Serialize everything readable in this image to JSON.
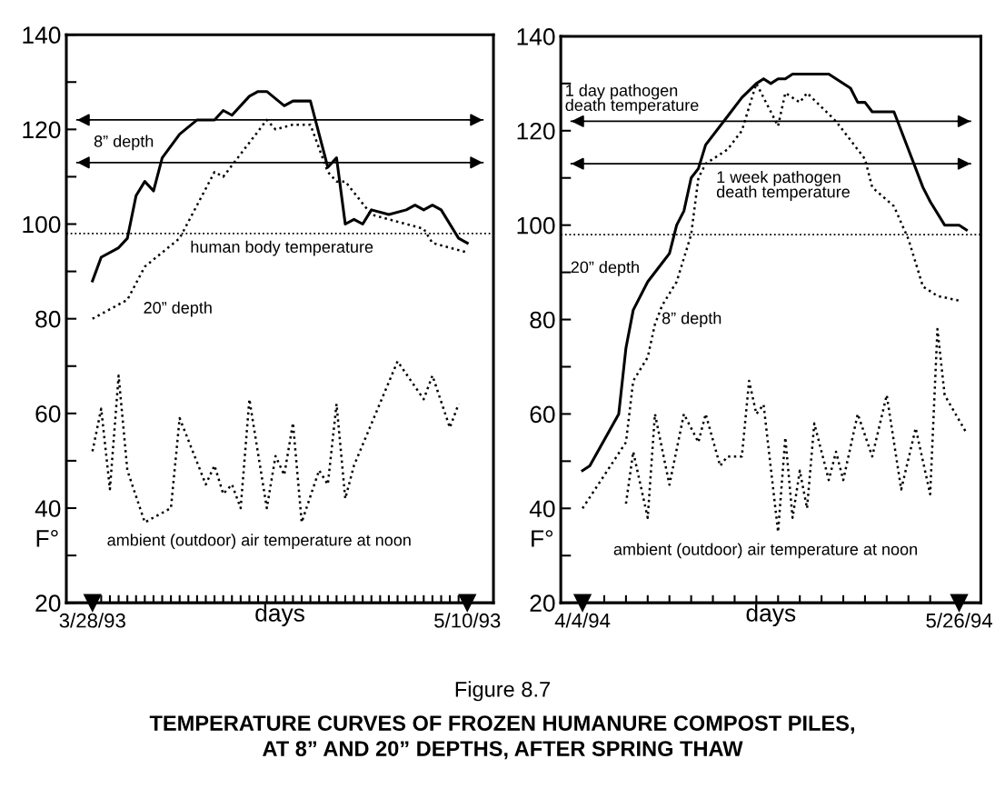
{
  "chart_data": [
    {
      "type": "line",
      "title": "Figure 8.7",
      "subtitle": "TEMPERATURE CURVES OF FROZEN HUMANURE COMPOST PILES,\nAT 8” AND 20” DEPTHS, AFTER SPRING THAW",
      "xlabel": "days",
      "ylabel": "F°",
      "xlim": [
        "1993-03-25",
        "1993-05-13"
      ],
      "ylim": [
        20,
        140
      ],
      "xticks": [
        {
          "value": "1993-03-28",
          "label": "3/28/93"
        },
        {
          "value": "1993-03-29",
          "label": null
        },
        {
          "value": "1993-03-30",
          "label": null
        },
        {
          "value": "1993-03-31",
          "label": null
        },
        {
          "value": "1993-04-01",
          "label": null
        },
        {
          "value": "1993-04-02",
          "label": null
        },
        {
          "value": "1993-04-03",
          "label": null
        },
        {
          "value": "1993-04-04",
          "label": null
        },
        {
          "value": "1993-04-05",
          "label": null
        },
        {
          "value": "1993-04-06",
          "label": null
        },
        {
          "value": "1993-04-07",
          "label": null
        },
        {
          "value": "1993-04-08",
          "label": null
        },
        {
          "value": "1993-04-09",
          "label": null
        },
        {
          "value": "1993-04-10",
          "label": null
        },
        {
          "value": "1993-04-11",
          "label": null
        },
        {
          "value": "1993-04-12",
          "label": null
        },
        {
          "value": "1993-04-13",
          "label": null
        },
        {
          "value": "1993-04-14",
          "label": null
        },
        {
          "value": "1993-04-15",
          "label": null
        },
        {
          "value": "1993-04-16",
          "label": null
        },
        {
          "value": "1993-04-17",
          "label": null
        },
        {
          "value": "1993-04-18",
          "label": null
        },
        {
          "value": "1993-04-19",
          "label": null
        },
        {
          "value": "1993-04-20",
          "label": null
        },
        {
          "value": "1993-04-21",
          "label": null
        },
        {
          "value": "1993-04-22",
          "label": null
        },
        {
          "value": "1993-04-23",
          "label": null
        },
        {
          "value": "1993-04-24",
          "label": null
        },
        {
          "value": "1993-04-25",
          "label": null
        },
        {
          "value": "1993-04-26",
          "label": null
        },
        {
          "value": "1993-04-27",
          "label": null
        },
        {
          "value": "1993-04-28",
          "label": null
        },
        {
          "value": "1993-04-29",
          "label": null
        },
        {
          "value": "1993-04-30",
          "label": null
        },
        {
          "value": "1993-05-01",
          "label": null
        },
        {
          "value": "1993-05-02",
          "label": null
        },
        {
          "value": "1993-05-03",
          "label": null
        },
        {
          "value": "1993-05-04",
          "label": null
        },
        {
          "value": "1993-05-05",
          "label": null
        },
        {
          "value": "1993-05-06",
          "label": null
        },
        {
          "value": "1993-05-07",
          "label": null
        },
        {
          "value": "1993-05-08",
          "label": null
        },
        {
          "value": "1993-05-09",
          "label": null
        },
        {
          "value": "1993-05-10",
          "label": "5/10/93"
        }
      ],
      "yticks": [
        20,
        {
          "value": 30,
          "label": null
        },
        40,
        {
          "value": 50,
          "label": null
        },
        60,
        {
          "value": 70,
          "label": null
        },
        80,
        {
          "value": 90,
          "label": null
        },
        100,
        {
          "value": 110,
          "label": null
        },
        120,
        {
          "value": 130,
          "label": null
        },
        140
      ],
      "grid": false,
      "marker": "none",
      "series": [
        {
          "color": "#000000",
          "line_style": "solid",
          "x": [
            "1993-03-28",
            "1993-03-29",
            "1993-03-31",
            "1993-04-01",
            "1993-04-02",
            "1993-04-03",
            "1993-04-04",
            "1993-04-05",
            "1993-04-07",
            "1993-04-09",
            "1993-04-11",
            "1993-04-12",
            "1993-04-13",
            "1993-04-15",
            "1993-04-16",
            "1993-04-17",
            "1993-04-19",
            "1993-04-20",
            "1993-04-22",
            "1993-04-24",
            "1993-04-25",
            "1993-04-26",
            "1993-04-27",
            "1993-04-28",
            "1993-04-29",
            "1993-05-01",
            "1993-05-03",
            "1993-05-04",
            "1993-05-05",
            "1993-05-06",
            "1993-05-07",
            "1993-05-09",
            "1993-05-10"
          ],
          "values": [
            88,
            93,
            95,
            97,
            106,
            109,
            107,
            114,
            119,
            122,
            122,
            124,
            123,
            127,
            128,
            128,
            125,
            126,
            126,
            112,
            114,
            100,
            101,
            100,
            103,
            102,
            103,
            104,
            103,
            104,
            103,
            97,
            96
          ]
        },
        {
          "color": "#000000",
          "line_style": "dotted",
          "x": [
            "1993-03-28",
            "1993-04-01",
            "1993-04-03",
            "1993-04-07",
            "1993-04-11",
            "1993-04-12",
            "1993-04-17",
            "1993-04-18",
            "1993-04-20",
            "1993-04-22",
            "1993-04-24",
            "1993-04-25",
            "1993-04-26",
            "1993-04-29",
            "1993-05-01",
            "1993-05-05",
            "1993-05-06",
            "1993-05-08",
            "1993-05-10"
          ],
          "values": [
            80,
            84,
            91,
            97,
            111,
            110,
            122,
            120,
            121,
            121,
            111,
            109,
            109,
            102,
            101,
            99,
            96,
            95,
            94
          ]
        },
        {
          "color": "#000000",
          "line_style": "dotted",
          "x": [
            "1993-03-28",
            "1993-03-29",
            "1993-03-30",
            "1993-03-31",
            "1993-04-01",
            "1993-04-03",
            "1993-04-06",
            "1993-04-07",
            "1993-04-10",
            "1993-04-11",
            "1993-04-12",
            "1993-04-13",
            "1993-04-14",
            "1993-04-15",
            "1993-04-17",
            "1993-04-18",
            "1993-04-19",
            "1993-04-20",
            "1993-04-21",
            "1993-04-23",
            "1993-04-24",
            "1993-04-25",
            "1993-04-26",
            "1993-04-27",
            "1993-05-02",
            "1993-05-05",
            "1993-05-06",
            "1993-05-08",
            "1993-05-09"
          ],
          "values": [
            52,
            61,
            44,
            68,
            48,
            37,
            40,
            59,
            45,
            49,
            43,
            45,
            40,
            63,
            40,
            51,
            47,
            58,
            37,
            48,
            45,
            62,
            42,
            49,
            71,
            63,
            68,
            57,
            62
          ]
        }
      ],
      "ref_lines": [
        {
          "axis": "y",
          "value": 122,
          "label": null,
          "line_style": "solid"
        },
        {
          "axis": "y",
          "value": 113,
          "label": null,
          "line_style": "solid"
        },
        {
          "axis": "y",
          "value": 98,
          "label": "human body temperature",
          "line_style": "dotted"
        }
      ],
      "annotations": [
        "8” depth",
        "20” depth",
        "ambient (outdoor) air temperature at noon"
      ]
    },
    {
      "type": "line",
      "xlabel": "days",
      "ylabel": "F°",
      "xlim": [
        "1994-04-01",
        "1994-05-29"
      ],
      "ylim": [
        20,
        140
      ],
      "xticks": [
        {
          "value": "1994-04-04",
          "label": "4/4/94"
        },
        {
          "value": "1994-04-07",
          "label": null
        },
        {
          "value": "1994-04-10",
          "label": null
        },
        {
          "value": "1994-04-13",
          "label": null
        },
        {
          "value": "1994-04-16",
          "label": null
        },
        {
          "value": "1994-04-19",
          "label": null
        },
        {
          "value": "1994-04-22",
          "label": null
        },
        {
          "value": "1994-04-25",
          "label": null
        },
        {
          "value": "1994-04-28",
          "label": null
        },
        {
          "value": "1994-05-01",
          "label": null
        },
        {
          "value": "1994-05-04",
          "label": null
        },
        {
          "value": "1994-05-07",
          "label": null
        },
        {
          "value": "1994-05-10",
          "label": null
        },
        {
          "value": "1994-05-13",
          "label": null
        },
        {
          "value": "1994-05-16",
          "label": null
        },
        {
          "value": "1994-05-19",
          "label": null
        },
        {
          "value": "1994-05-22",
          "label": null
        },
        {
          "value": "1994-05-26",
          "label": "5/26/94"
        }
      ],
      "yticks": [
        20,
        {
          "value": 30,
          "label": null
        },
        40,
        {
          "value": 50,
          "label": null
        },
        60,
        {
          "value": 70,
          "label": null
        },
        80,
        {
          "value": 90,
          "label": null
        },
        100,
        {
          "value": 110,
          "label": null
        },
        120,
        {
          "value": 130,
          "label": null
        },
        140
      ],
      "grid": false,
      "marker": "none",
      "series": [
        {
          "color": "#000000",
          "line_style": "solid",
          "x": [
            "1994-04-04",
            "1994-04-05",
            "1994-04-09",
            "1994-04-10",
            "1994-04-11",
            "1994-04-13",
            "1994-04-15",
            "1994-04-16",
            "1994-04-17",
            "1994-04-18",
            "1994-04-19",
            "1994-04-20",
            "1994-04-21",
            "1994-04-24",
            "1994-04-26",
            "1994-04-28",
            "1994-04-29",
            "1994-04-30",
            "1994-05-01",
            "1994-05-02",
            "1994-05-03",
            "1994-05-08",
            "1994-05-11",
            "1994-05-12",
            "1994-05-13",
            "1994-05-14",
            "1994-05-17",
            "1994-05-19",
            "1994-05-21",
            "1994-05-22",
            "1994-05-24",
            "1994-05-26",
            "1994-05-27"
          ],
          "values": [
            48,
            49,
            60,
            74,
            82,
            88,
            92,
            94,
            100,
            103,
            110,
            112,
            117,
            123,
            127,
            130,
            131,
            130,
            131,
            131,
            132,
            132,
            129,
            126,
            126,
            124,
            124,
            116,
            108,
            105,
            100,
            100,
            99
          ]
        },
        {
          "color": "#000000",
          "line_style": "dotted",
          "x": [
            "1994-04-04",
            "1994-04-10",
            "1994-04-11",
            "1994-04-13",
            "1994-04-14",
            "1994-04-15",
            "1994-04-17",
            "1994-04-19",
            "1994-04-20",
            "1994-04-21",
            "1994-04-24",
            "1994-04-26",
            "1994-04-28",
            "1994-05-01",
            "1994-05-02",
            "1994-05-04",
            "1994-05-05",
            "1994-05-09",
            "1994-05-13",
            "1994-05-14",
            "1994-05-17",
            "1994-05-19",
            "1994-05-21",
            "1994-05-23",
            "1994-05-26"
          ],
          "values": [
            40,
            54,
            67,
            72,
            79,
            83,
            88,
            98,
            110,
            113,
            116,
            120,
            130,
            121,
            128,
            126,
            128,
            122,
            114,
            108,
            104,
            97,
            87,
            85,
            84
          ]
        },
        {
          "color": "#000000",
          "line_style": "dotted",
          "x": [
            "1994-04-10",
            "1994-04-11",
            "1994-04-13",
            "1994-04-14",
            "1994-04-16",
            "1994-04-18",
            "1994-04-20",
            "1994-04-21",
            "1994-04-23",
            "1994-04-24",
            "1994-04-26",
            "1994-04-27",
            "1994-04-28",
            "1994-04-29",
            "1994-05-01",
            "1994-05-02",
            "1994-05-03",
            "1994-05-04",
            "1994-05-05",
            "1994-05-06",
            "1994-05-08",
            "1994-05-09",
            "1994-05-10",
            "1994-05-12",
            "1994-05-14",
            "1994-05-16",
            "1994-05-18",
            "1994-05-20",
            "1994-05-22",
            "1994-05-23",
            "1994-05-24",
            "1994-05-27"
          ],
          "values": [
            41,
            52,
            38,
            60,
            45,
            60,
            54,
            60,
            49,
            51,
            51,
            67,
            60,
            62,
            35,
            55,
            38,
            48,
            40,
            58,
            46,
            52,
            46,
            60,
            51,
            64,
            44,
            57,
            43,
            78,
            64,
            56
          ]
        }
      ],
      "ref_lines": [
        {
          "axis": "y",
          "value": 122,
          "label": "1 day pathogen\ndeath temperature",
          "line_style": "solid"
        },
        {
          "axis": "y",
          "value": 113,
          "label": "1 week pathogen\ndeath temperature",
          "line_style": "solid"
        },
        {
          "axis": "y",
          "value": 98,
          "label": null,
          "line_style": "dotted"
        }
      ],
      "annotations": [
        "20” depth",
        "8” depth",
        "ambient (outdoor) air temperature at noon"
      ]
    }
  ]
}
